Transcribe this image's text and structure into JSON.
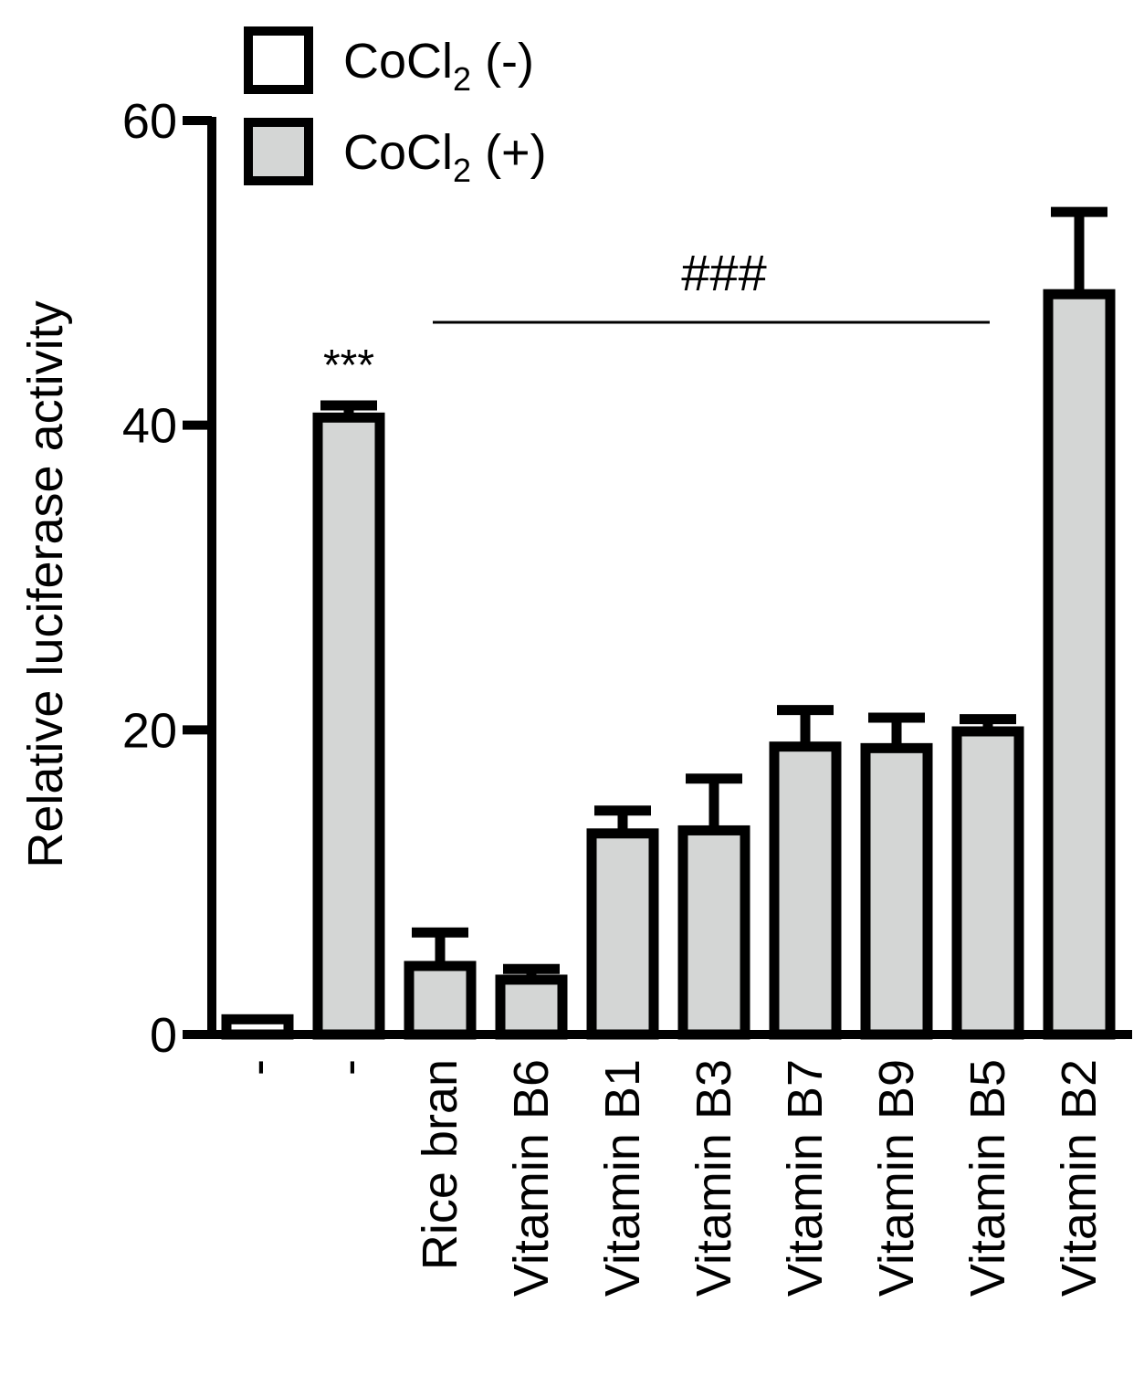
{
  "chart_data": {
    "type": "bar",
    "ylabel": "Relative luciferase activity",
    "ylim": [
      0,
      60
    ],
    "yticks": [
      0,
      20,
      40,
      60
    ],
    "categories": [
      "-",
      "-",
      "Rice bran",
      "Vitamin B6",
      "Vitamin B1",
      "Vitamin B3",
      "Vitamin B7",
      "Vitamin B9",
      "Vitamin B5",
      "Vitamin B2"
    ],
    "values": [
      1,
      40.5,
      4.5,
      3.6,
      13.2,
      13.4,
      18.9,
      18.8,
      19.9,
      48.6
    ],
    "errors": [
      0,
      0.8,
      2.2,
      0.7,
      1.5,
      3.4,
      2.4,
      2.0,
      0.8,
      5.4
    ],
    "groups": [
      "CoCl2 (-)",
      "CoCl2 (+)",
      "CoCl2 (+)",
      "CoCl2 (+)",
      "CoCl2 (+)",
      "CoCl2 (+)",
      "CoCl2 (+)",
      "CoCl2 (+)",
      "CoCl2 (+)",
      "CoCl2 (+)"
    ],
    "legend": {
      "placement": "top-left",
      "entries": [
        {
          "name_main": "CoCl",
          "name_sub": "2",
          "name_suffix": " (-)",
          "color": "#ffffff"
        },
        {
          "name_main": "CoCl",
          "name_sub": "2",
          "name_suffix": " (+)",
          "color": "#d4d6d5"
        }
      ]
    },
    "annotations": {
      "stars": {
        "text": "***",
        "category_index": 1
      },
      "bracket": {
        "text": "###",
        "from_index": 2,
        "to_index": 8
      }
    }
  }
}
